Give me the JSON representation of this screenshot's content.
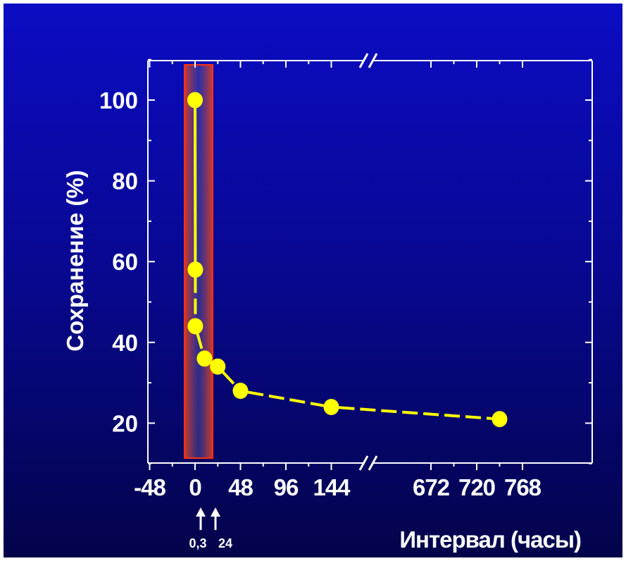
{
  "chart_data": {
    "type": "line",
    "ylabel": "Сохранение (%)",
    "xlabel": "Интервал (часы)",
    "y_ticks": [
      "20",
      "40",
      "60",
      "80",
      "100"
    ],
    "x_ticks": [
      "-48",
      "0",
      "48",
      "96",
      "144",
      "672",
      "720",
      "768"
    ],
    "ylim": [
      10,
      110
    ],
    "x_axis_break": "between 144 and 672",
    "grid": false,
    "highlight_band": {
      "from": -2,
      "to": 2,
      "color": "#e8401a"
    },
    "arrow_labels": [
      "0,3",
      "24"
    ],
    "series": [
      {
        "color": "#ffff00",
        "points": [
          {
            "x": 0,
            "y": 100
          },
          {
            "x": 0.3,
            "y": 58
          },
          {
            "x": 0.3,
            "y": 44
          },
          {
            "x": 10,
            "y": 36
          },
          {
            "x": 24,
            "y": 34
          },
          {
            "x": 48,
            "y": 28
          },
          {
            "x": 144,
            "y": 24
          },
          {
            "x": 744,
            "y": 21
          }
        ]
      }
    ]
  }
}
